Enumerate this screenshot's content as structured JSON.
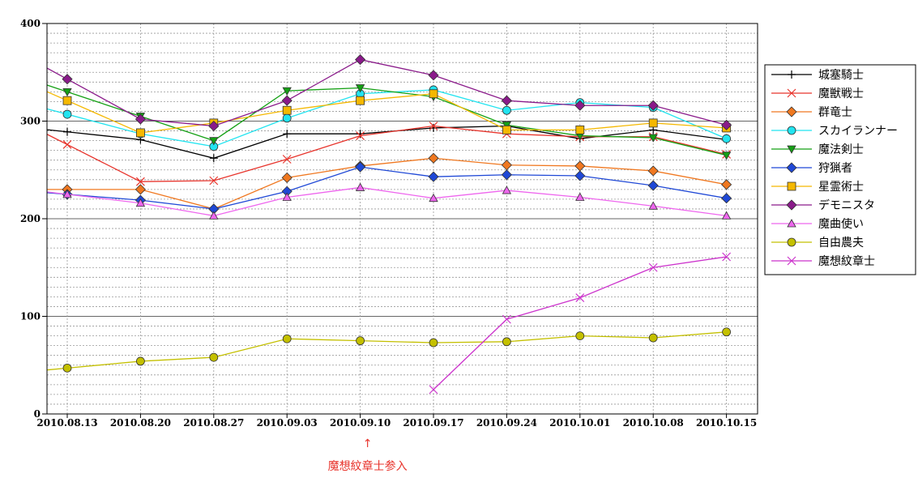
{
  "chart_data": {
    "type": "line",
    "title": "",
    "xlabel": "",
    "ylabel": "",
    "x": [
      "2010.08.13",
      "2010.08.20",
      "2010.08.27",
      "2010.09.03",
      "2010.09.10",
      "2010.09.17",
      "2010.09.24",
      "2010.10.01",
      "2010.10.08",
      "2010.10.15"
    ],
    "ylim": [
      0,
      400
    ],
    "yticks": [
      0,
      100,
      200,
      300,
      400
    ],
    "y_minor_step": 10,
    "grid": true,
    "legend_position": "right",
    "series": [
      {
        "name": "城塞騎士",
        "color": "#000000",
        "marker": "plus",
        "values": [
          289,
          281,
          262,
          287,
          287,
          293,
          295,
          282,
          291,
          281
        ]
      },
      {
        "name": "魔獣戦士",
        "color": "#e8342c",
        "marker": "x",
        "values": [
          276,
          238,
          239,
          261,
          285,
          295,
          287,
          284,
          284,
          266
        ]
      },
      {
        "name": "群竜士",
        "color": "#f07820",
        "marker": "diamond",
        "values": [
          230,
          230,
          210,
          242,
          254,
          262,
          255,
          254,
          249,
          235
        ]
      },
      {
        "name": "スカイランナー",
        "color": "#22e4f0",
        "marker": "circle",
        "values": [
          307,
          287,
          274,
          303,
          328,
          332,
          311,
          319,
          314,
          282
        ]
      },
      {
        "name": "魔法剣士",
        "color": "#14a014",
        "marker": "triangle-down",
        "values": [
          330,
          305,
          280,
          331,
          334,
          325,
          296,
          285,
          283,
          265
        ]
      },
      {
        "name": "狩猟者",
        "color": "#1f48d6",
        "marker": "diamond",
        "values": [
          225,
          219,
          210,
          228,
          253,
          243,
          245,
          244,
          234,
          221
        ]
      },
      {
        "name": "星霊術士",
        "color": "#f5b800",
        "marker": "square",
        "values": [
          321,
          288,
          298,
          311,
          321,
          328,
          291,
          291,
          298,
          293
        ]
      },
      {
        "name": "デモニスタ",
        "color": "#8a1a8a",
        "marker": "diamond",
        "values": [
          343,
          302,
          295,
          321,
          363,
          347,
          321,
          316,
          316,
          296
        ]
      },
      {
        "name": "魔曲使い",
        "color": "#ee66ee",
        "marker": "triangle-up",
        "values": [
          225,
          216,
          203,
          222,
          232,
          221,
          229,
          222,
          213,
          203
        ]
      },
      {
        "name": "自由農夫",
        "color": "#c4c000",
        "marker": "circle",
        "values": [
          47,
          54,
          58,
          77,
          75,
          73,
          74,
          80,
          78,
          84
        ]
      },
      {
        "name": "魔想紋章士",
        "color": "#cc33cc",
        "marker": "x",
        "values": [
          null,
          null,
          null,
          null,
          null,
          25,
          97,
          119,
          150,
          161
        ]
      }
    ],
    "annotation": {
      "text": "魔想紋章士参入",
      "x": "2010.09.10",
      "arrow": "↑",
      "color": "#e8342c"
    }
  }
}
